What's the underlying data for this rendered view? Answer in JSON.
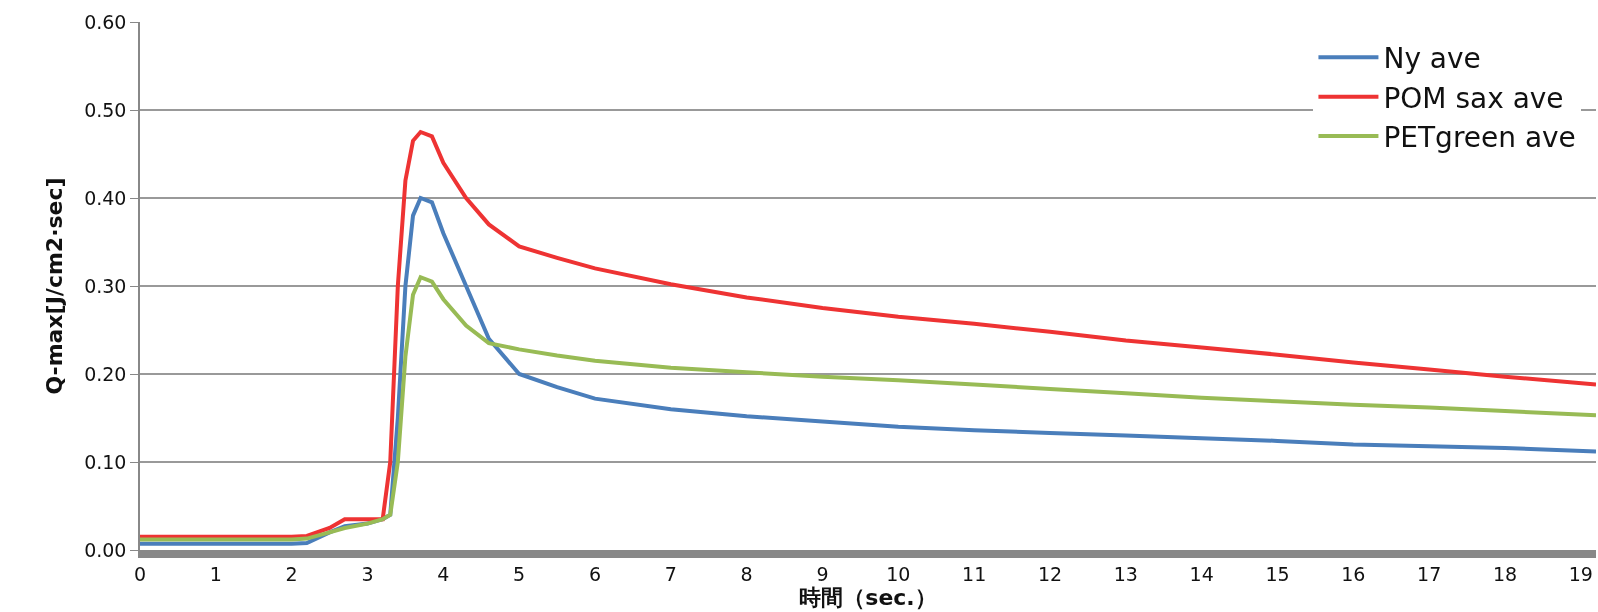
{
  "chart_data": {
    "type": "line",
    "xlabel": "時間（sec.）",
    "ylabel": "Q-max[J/cm2·sec]",
    "x": [
      0,
      1,
      2,
      2.2,
      2.5,
      2.7,
      3,
      3.2,
      3.3,
      3.4,
      3.5,
      3.6,
      3.7,
      3.85,
      4,
      4.3,
      4.6,
      5,
      5.5,
      6,
      7,
      8,
      9,
      10,
      11,
      12,
      13,
      14,
      15,
      16,
      17,
      18,
      19.2
    ],
    "series": [
      {
        "name": "Ny ave",
        "color": "#4a7ebb",
        "values": [
          0.007,
          0.007,
          0.007,
          0.008,
          0.02,
          0.027,
          0.03,
          0.035,
          0.04,
          0.15,
          0.3,
          0.38,
          0.4,
          0.395,
          0.36,
          0.3,
          0.24,
          0.2,
          0.185,
          0.172,
          0.16,
          0.152,
          0.146,
          0.14,
          0.136,
          0.133,
          0.13,
          0.127,
          0.124,
          0.12,
          0.118,
          0.116,
          0.112
        ]
      },
      {
        "name": "POM sax ave",
        "color": "#ee3333",
        "values": [
          0.015,
          0.015,
          0.015,
          0.016,
          0.025,
          0.035,
          0.035,
          0.035,
          0.1,
          0.3,
          0.42,
          0.465,
          0.475,
          0.47,
          0.44,
          0.4,
          0.37,
          0.345,
          0.332,
          0.32,
          0.302,
          0.287,
          0.275,
          0.265,
          0.257,
          0.248,
          0.238,
          0.23,
          0.222,
          0.213,
          0.205,
          0.197,
          0.188
        ]
      },
      {
        "name": "PETgreen ave",
        "color": "#98bb55",
        "values": [
          0.012,
          0.012,
          0.012,
          0.013,
          0.02,
          0.025,
          0.03,
          0.035,
          0.04,
          0.1,
          0.22,
          0.29,
          0.31,
          0.305,
          0.285,
          0.255,
          0.235,
          0.228,
          0.221,
          0.215,
          0.207,
          0.202,
          0.197,
          0.193,
          0.188,
          0.183,
          0.178,
          0.173,
          0.169,
          0.165,
          0.162,
          0.158,
          0.153
        ]
      }
    ],
    "xlim": [
      0,
      19.2
    ],
    "xticks": [
      0,
      1,
      2,
      3,
      4,
      5,
      6,
      7,
      8,
      9,
      10,
      11,
      12,
      13,
      14,
      15,
      16,
      17,
      18,
      19
    ],
    "ylim": [
      0,
      0.6
    ],
    "yticks": [
      {
        "value": 0,
        "label": "0.00"
      },
      {
        "value": 0.1,
        "label": "0.10"
      },
      {
        "value": 0.2,
        "label": "0.20"
      },
      {
        "value": 0.3,
        "label": "0.30"
      },
      {
        "value": 0.4,
        "label": "0.40"
      },
      {
        "value": 0.5,
        "label": "0.50"
      },
      {
        "value": 0.6,
        "label": "0.60"
      }
    ],
    "grid": "y",
    "legend": "top right",
    "marker": "none",
    "line_style": "solid"
  }
}
